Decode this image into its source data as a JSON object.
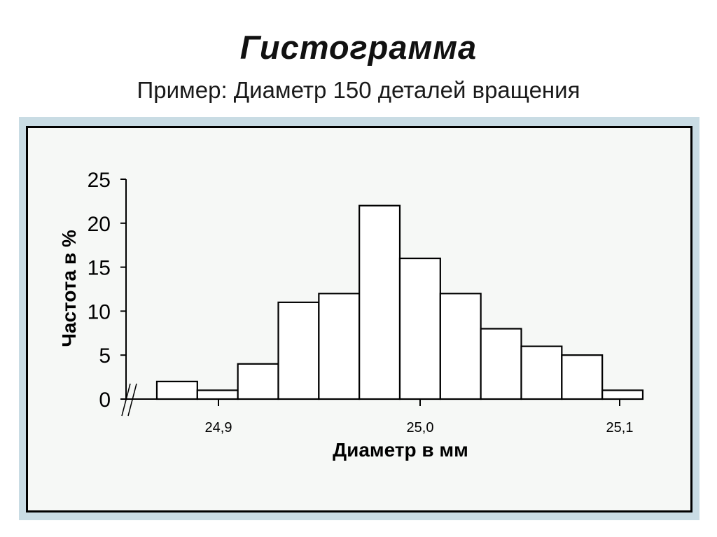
{
  "slide": {
    "title": "Гистограмма",
    "subtitle": "Пример: Диаметр 150 деталей вращения"
  },
  "colors": {
    "panel": "#c9dce4",
    "inner": "#f6f8f6",
    "bar_fill": "#ffffff",
    "bar_stroke": "#000000"
  },
  "chart_data": {
    "type": "bar",
    "title": "",
    "xlabel": "Диаметр в мм",
    "ylabel": "Частота в %",
    "ylim": [
      0,
      25
    ],
    "yticks": [
      0,
      5,
      10,
      15,
      20,
      25
    ],
    "xlim": [
      24.87,
      25.11
    ],
    "xticks": [
      {
        "value": 24.9,
        "label": "24,9"
      },
      {
        "value": 25.0,
        "label": "25,0"
      },
      {
        "value": 25.1,
        "label": "25,1"
      }
    ],
    "bins": [
      {
        "start": 24.88,
        "end": 24.9,
        "value": 2
      },
      {
        "start": 24.9,
        "end": 24.92,
        "value": 1
      },
      {
        "start": 24.92,
        "end": 24.94,
        "value": 4
      },
      {
        "start": 24.94,
        "end": 24.96,
        "value": 11
      },
      {
        "start": 24.96,
        "end": 24.98,
        "value": 12
      },
      {
        "start": 24.98,
        "end": 25.0,
        "value": 22
      },
      {
        "start": 25.0,
        "end": 25.02,
        "value": 16
      },
      {
        "start": 25.02,
        "end": 25.04,
        "value": 12
      },
      {
        "start": 25.04,
        "end": 25.06,
        "value": 8
      },
      {
        "start": 25.06,
        "end": 25.08,
        "value": 6
      },
      {
        "start": 25.08,
        "end": 25.1,
        "value": 5
      },
      {
        "start": 25.1,
        "end": 25.12,
        "value": 1
      }
    ],
    "grid": false,
    "axis_break": true
  }
}
